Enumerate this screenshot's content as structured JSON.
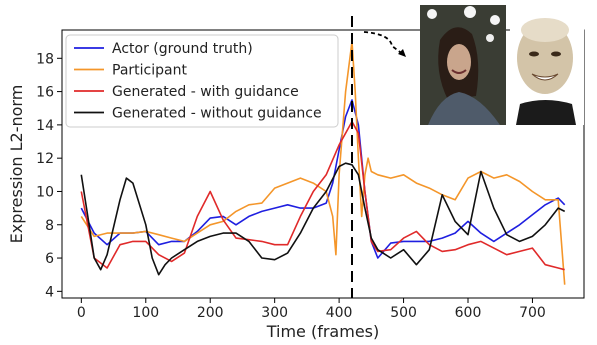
{
  "chart_data": {
    "type": "line",
    "xlabel": "Time (frames)",
    "ylabel": "Expression L2-norm",
    "xlim": [
      -30,
      780
    ],
    "ylim": [
      3.6,
      19.7
    ],
    "xticks": [
      0,
      100,
      200,
      300,
      400,
      500,
      600,
      700
    ],
    "yticks": [
      4,
      6,
      8,
      10,
      12,
      14,
      16,
      18
    ],
    "grid": false,
    "legend": "top-left",
    "annotation": {
      "type": "vertical-dashed-line",
      "x": 420
    },
    "insets": [
      "participant-face-photo",
      "generated-avatar-face"
    ],
    "series": [
      {
        "name": "Actor (ground truth)",
        "color": "#1f1fe0",
        "x": [
          0,
          20,
          40,
          60,
          80,
          100,
          120,
          140,
          160,
          180,
          200,
          220,
          240,
          260,
          280,
          300,
          320,
          340,
          360,
          380,
          390,
          400,
          410,
          420,
          430,
          440,
          450,
          460,
          480,
          500,
          520,
          540,
          560,
          580,
          600,
          620,
          640,
          660,
          680,
          700,
          720,
          740,
          750
        ],
        "y": [
          9.0,
          7.5,
          6.8,
          7.5,
          7.5,
          7.6,
          6.8,
          7.0,
          7.0,
          7.6,
          8.4,
          8.5,
          8.0,
          8.5,
          8.8,
          9.0,
          9.2,
          9.0,
          9.0,
          9.3,
          10.5,
          12.5,
          14.5,
          15.5,
          14.0,
          10.0,
          7.0,
          6.0,
          6.9,
          7.0,
          7.0,
          7.0,
          7.2,
          7.5,
          8.2,
          7.5,
          7.0,
          7.5,
          8.0,
          8.6,
          9.2,
          9.6,
          9.2
        ]
      },
      {
        "name": "Participant",
        "color": "#f4962a",
        "x": [
          0,
          20,
          40,
          60,
          80,
          100,
          120,
          140,
          160,
          180,
          200,
          220,
          240,
          260,
          280,
          300,
          320,
          340,
          360,
          380,
          390,
          395,
          400,
          410,
          420,
          425,
          430,
          435,
          440,
          445,
          450,
          460,
          480,
          500,
          520,
          540,
          560,
          580,
          600,
          620,
          640,
          660,
          680,
          700,
          720,
          740,
          750
        ],
        "y": [
          8.5,
          7.3,
          7.5,
          7.5,
          7.5,
          7.6,
          7.4,
          7.2,
          7.0,
          7.5,
          8.0,
          8.2,
          8.8,
          9.2,
          9.3,
          10.2,
          10.5,
          10.8,
          10.5,
          10.0,
          8.5,
          6.2,
          11.0,
          16.0,
          19.0,
          16.0,
          12.0,
          8.5,
          11.0,
          12.0,
          11.2,
          11.0,
          10.8,
          11.0,
          10.5,
          10.2,
          9.8,
          9.5,
          10.8,
          11.2,
          10.8,
          11.0,
          10.6,
          10.0,
          9.5,
          9.5,
          4.4
        ]
      },
      {
        "name": "Generated - with guidance",
        "color": "#e02a2a",
        "x": [
          0,
          20,
          40,
          60,
          80,
          100,
          120,
          140,
          160,
          180,
          200,
          220,
          240,
          260,
          280,
          300,
          320,
          340,
          360,
          380,
          400,
          410,
          420,
          430,
          440,
          450,
          460,
          480,
          500,
          520,
          540,
          560,
          580,
          600,
          620,
          640,
          660,
          680,
          700,
          720,
          740,
          750
        ],
        "y": [
          10.0,
          6.0,
          5.4,
          6.8,
          7.0,
          7.0,
          6.2,
          5.8,
          6.3,
          8.5,
          10.0,
          8.3,
          7.2,
          7.1,
          7.0,
          6.8,
          6.8,
          8.5,
          10.0,
          11.0,
          12.8,
          13.5,
          14.2,
          13.5,
          10.0,
          7.0,
          6.4,
          6.5,
          7.2,
          7.6,
          6.8,
          6.4,
          6.5,
          6.8,
          7.0,
          6.6,
          6.2,
          6.4,
          6.6,
          5.6,
          5.4,
          5.3
        ]
      },
      {
        "name": "Generated - without guidance",
        "color": "#111111",
        "x": [
          0,
          10,
          20,
          30,
          40,
          60,
          70,
          80,
          100,
          110,
          120,
          130,
          140,
          160,
          180,
          200,
          220,
          240,
          260,
          280,
          300,
          320,
          340,
          360,
          380,
          400,
          410,
          420,
          430,
          440,
          450,
          460,
          480,
          500,
          520,
          540,
          560,
          580,
          600,
          620,
          640,
          660,
          680,
          700,
          720,
          740,
          750
        ],
        "y": [
          11.0,
          8.5,
          6.0,
          5.3,
          6.2,
          9.5,
          10.8,
          10.5,
          8.0,
          6.0,
          5.0,
          5.6,
          6.0,
          6.5,
          7.0,
          7.3,
          7.5,
          7.5,
          7.0,
          6.0,
          5.9,
          6.3,
          7.5,
          9.0,
          10.0,
          11.5,
          11.7,
          11.6,
          11.0,
          9.0,
          7.2,
          6.5,
          6.0,
          6.5,
          5.6,
          6.5,
          9.8,
          8.2,
          7.4,
          11.2,
          9.0,
          7.4,
          7.0,
          7.3,
          8.0,
          9.0,
          8.8
        ]
      }
    ]
  }
}
